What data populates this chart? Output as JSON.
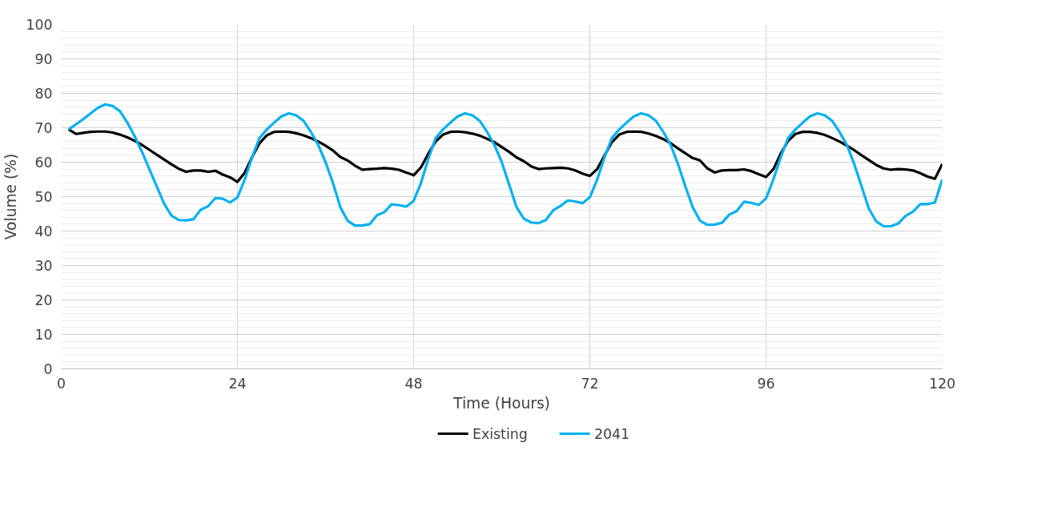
{
  "chart_data": {
    "type": "line",
    "xlabel": "Time (Hours)",
    "ylabel": "Volume (%)",
    "x": [
      1,
      2,
      3,
      4,
      5,
      6,
      7,
      8,
      9,
      10,
      11,
      12,
      13,
      14,
      15,
      16,
      17,
      18,
      19,
      20,
      21,
      22,
      23,
      24,
      25,
      26,
      27,
      28,
      29,
      30,
      31,
      32,
      33,
      34,
      35,
      36,
      37,
      38,
      39,
      40,
      41,
      42,
      43,
      44,
      45,
      46,
      47,
      48,
      49,
      50,
      51,
      52,
      53,
      54,
      55,
      56,
      57,
      58,
      59,
      60,
      61,
      62,
      63,
      64,
      65,
      66,
      67,
      68,
      69,
      70,
      71,
      72,
      73,
      74,
      75,
      76,
      77,
      78,
      79,
      80,
      81,
      82,
      83,
      84,
      85,
      86,
      87,
      88,
      89,
      90,
      91,
      92,
      93,
      94,
      95,
      96,
      97,
      98,
      99,
      100,
      101,
      102,
      103,
      104,
      105,
      106,
      107,
      108,
      109,
      110,
      111,
      112,
      113,
      114,
      115,
      116,
      117,
      118,
      119,
      120
    ],
    "series": [
      {
        "name": "Existing",
        "color": "#000000",
        "values": [
          69.5,
          68.2,
          68.5,
          68.8,
          68.9,
          68.9,
          68.6,
          68.0,
          67.2,
          66.2,
          65.0,
          63.6,
          62.2,
          60.8,
          59.4,
          58.1,
          57.2,
          57.6,
          57.6,
          57.2,
          57.5,
          56.4,
          55.6,
          54.3,
          57.0,
          61.5,
          65.5,
          67.8,
          68.8,
          68.9,
          68.8,
          68.4,
          67.8,
          67.0,
          66.0,
          64.8,
          63.4,
          61.5,
          60.5,
          59.0,
          57.8,
          58.0,
          58.1,
          58.3,
          58.1,
          57.8,
          57.0,
          56.2,
          58.5,
          62.5,
          66.0,
          68.0,
          68.8,
          68.9,
          68.7,
          68.3,
          67.7,
          66.8,
          65.8,
          64.4,
          63.0,
          61.4,
          60.3,
          58.8,
          58.0,
          58.2,
          58.3,
          58.4,
          58.2,
          57.6,
          56.7,
          56.0,
          58.0,
          62.0,
          65.8,
          68.0,
          68.8,
          68.9,
          68.8,
          68.3,
          67.6,
          66.7,
          65.5,
          64.0,
          62.6,
          61.2,
          60.5,
          58.2,
          57.0,
          57.6,
          57.7,
          57.7,
          57.9,
          57.4,
          56.5,
          55.7,
          58.0,
          62.5,
          66.2,
          68.2,
          68.8,
          68.8,
          68.5,
          67.9,
          67.0,
          66.0,
          64.8,
          63.5,
          62.0,
          60.6,
          59.2,
          58.2,
          57.8,
          58.0,
          57.9,
          57.6,
          56.8,
          55.8,
          55.2,
          59.5
        ]
      },
      {
        "name": "2041",
        "color": "#00b0f0",
        "values": [
          69.5,
          71.0,
          72.5,
          74.2,
          75.8,
          76.8,
          76.3,
          74.8,
          71.5,
          67.5,
          63.0,
          58.0,
          53.0,
          48.0,
          44.5,
          43.2,
          43.1,
          43.4,
          46.2,
          47.2,
          49.6,
          49.4,
          48.3,
          49.8,
          55.0,
          61.5,
          67.0,
          69.5,
          71.5,
          73.3,
          74.2,
          73.6,
          72.0,
          68.8,
          65.0,
          60.0,
          54.0,
          47.0,
          43.0,
          41.6,
          41.6,
          42.0,
          44.6,
          45.5,
          47.8,
          47.5,
          47.1,
          48.8,
          54.0,
          61.0,
          67.0,
          69.5,
          71.5,
          73.3,
          74.2,
          73.6,
          72.0,
          68.8,
          65.0,
          60.0,
          53.5,
          47.0,
          43.6,
          42.5,
          42.3,
          43.2,
          46.0,
          47.3,
          48.9,
          48.6,
          48.1,
          49.8,
          55.0,
          61.5,
          67.0,
          69.5,
          71.5,
          73.3,
          74.2,
          73.6,
          72.0,
          68.8,
          65.0,
          59.5,
          53.0,
          47.0,
          43.0,
          41.8,
          41.9,
          42.4,
          44.8,
          45.8,
          48.5,
          48.2,
          47.6,
          49.5,
          55.0,
          61.5,
          67.0,
          69.5,
          71.5,
          73.3,
          74.2,
          73.6,
          72.0,
          68.8,
          65.0,
          59.5,
          53.0,
          46.5,
          42.8,
          41.4,
          41.4,
          42.2,
          44.4,
          45.6,
          47.8,
          47.8,
          48.3,
          55.0
        ]
      }
    ],
    "xlim": [
      0,
      120
    ],
    "xticks": [
      0,
      24,
      48,
      72,
      96,
      120
    ],
    "ylim": [
      0,
      100
    ],
    "yticks": [
      0,
      10,
      20,
      30,
      40,
      50,
      60,
      70,
      80,
      90,
      100
    ],
    "grid": true,
    "legend": "bottom",
    "marker": "none",
    "line_style": "solid"
  }
}
